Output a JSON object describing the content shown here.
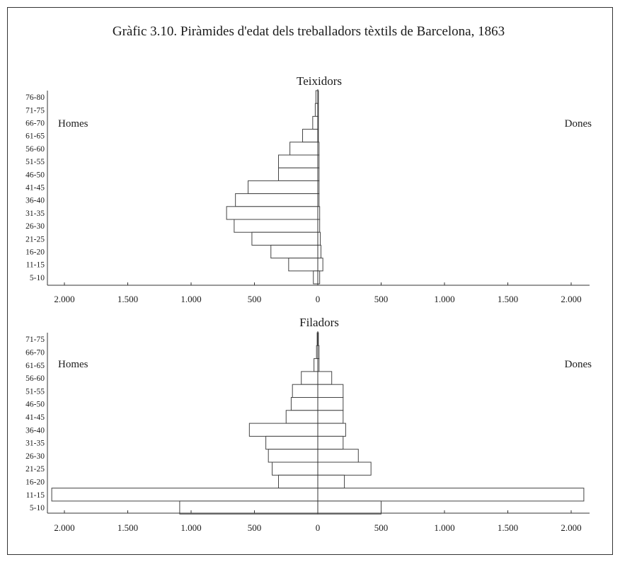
{
  "chart_data": {
    "title": "Gràfic 3.10. Piràmides d'edat dels treballadors tèxtils de Barcelona, 1863",
    "charts": [
      {
        "type": "bar",
        "subtitle": "Teixidors",
        "left_label": "Homes",
        "right_label": "Dones",
        "categories": [
          "76-80",
          "71-75",
          "66-70",
          "61-65",
          "56-60",
          "51-55",
          "46-50",
          "41-45",
          "36-40",
          "31-35",
          "26-30",
          "21-25",
          "16-20",
          "11-15",
          "5-10"
        ],
        "series": [
          {
            "name": "Homes",
            "values": [
              15,
              20,
              40,
              120,
              220,
              310,
              310,
              550,
              650,
              720,
              660,
              520,
              370,
              230,
              35
            ]
          },
          {
            "name": "Dones",
            "values": [
              5,
              5,
              5,
              5,
              10,
              10,
              10,
              10,
              10,
              15,
              15,
              20,
              25,
              40,
              15
            ]
          }
        ],
        "xlim": [
          -2000,
          2000
        ],
        "tick_labels": [
          "2.000",
          "1.500",
          "1.000",
          "500",
          "0",
          "500",
          "1.000",
          "1.500",
          "2.000"
        ]
      },
      {
        "type": "bar",
        "subtitle": "Filadors",
        "left_label": "Homes",
        "right_label": "Dones",
        "categories": [
          "71-75",
          "66-70",
          "61-65",
          "56-60",
          "51-55",
          "46-50",
          "41-45",
          "36-40",
          "31-35",
          "26-30",
          "21-25",
          "16-20",
          "11-15",
          "5-10"
        ],
        "series": [
          {
            "name": "Homes",
            "values": [
              5,
              10,
              30,
              130,
              200,
              210,
              250,
              540,
              410,
              390,
              360,
              310,
              2100,
              1090
            ]
          },
          {
            "name": "Dones",
            "values": [
              5,
              10,
              10,
              110,
              200,
              200,
              200,
              220,
              200,
              320,
              420,
              210,
              2100,
              500
            ]
          }
        ],
        "xlim": [
          -2000,
          2000
        ],
        "tick_labels": [
          "2.000",
          "1.500",
          "1.000",
          "500",
          "0",
          "500",
          "1.000",
          "1.500",
          "2.000"
        ]
      }
    ]
  }
}
